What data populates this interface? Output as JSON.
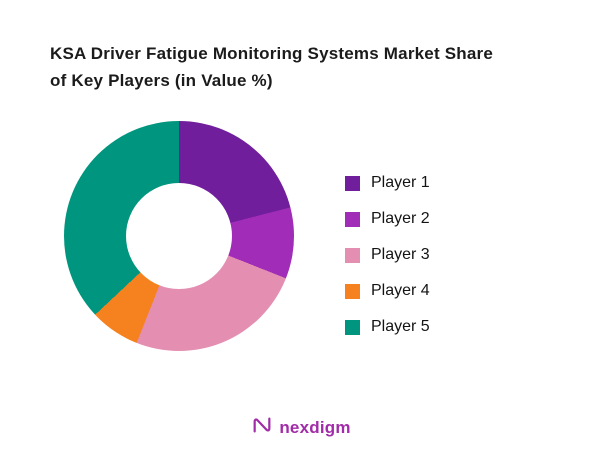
{
  "title": {
    "line1": "KSA Driver Fatigue Monitoring Systems Market Share",
    "line2": "of Key Players (in Value %)"
  },
  "chart_data": {
    "type": "pie",
    "subtype": "donut",
    "title": "KSA Driver Fatigue Monitoring Systems Market Share of Key Players (in Value %)",
    "unit": "Value %",
    "start_angle_deg": 0,
    "direction": "clockwise",
    "legend_position": "right",
    "values_labeled": false,
    "series": [
      {
        "name": "Player 1",
        "value": 21,
        "color": "#701E9C"
      },
      {
        "name": "Player 2",
        "value": 10,
        "color": "#A02CB8"
      },
      {
        "name": "Player 3",
        "value": 25,
        "color": "#E48FB2"
      },
      {
        "name": "Player 4",
        "value": 7,
        "color": "#F5821F"
      },
      {
        "name": "Player 5",
        "value": 37,
        "color": "#00957E"
      }
    ]
  },
  "logo": {
    "text": "nexdigm",
    "icon": "nexdigm-n-wave-icon",
    "color": "#A12BA8"
  }
}
